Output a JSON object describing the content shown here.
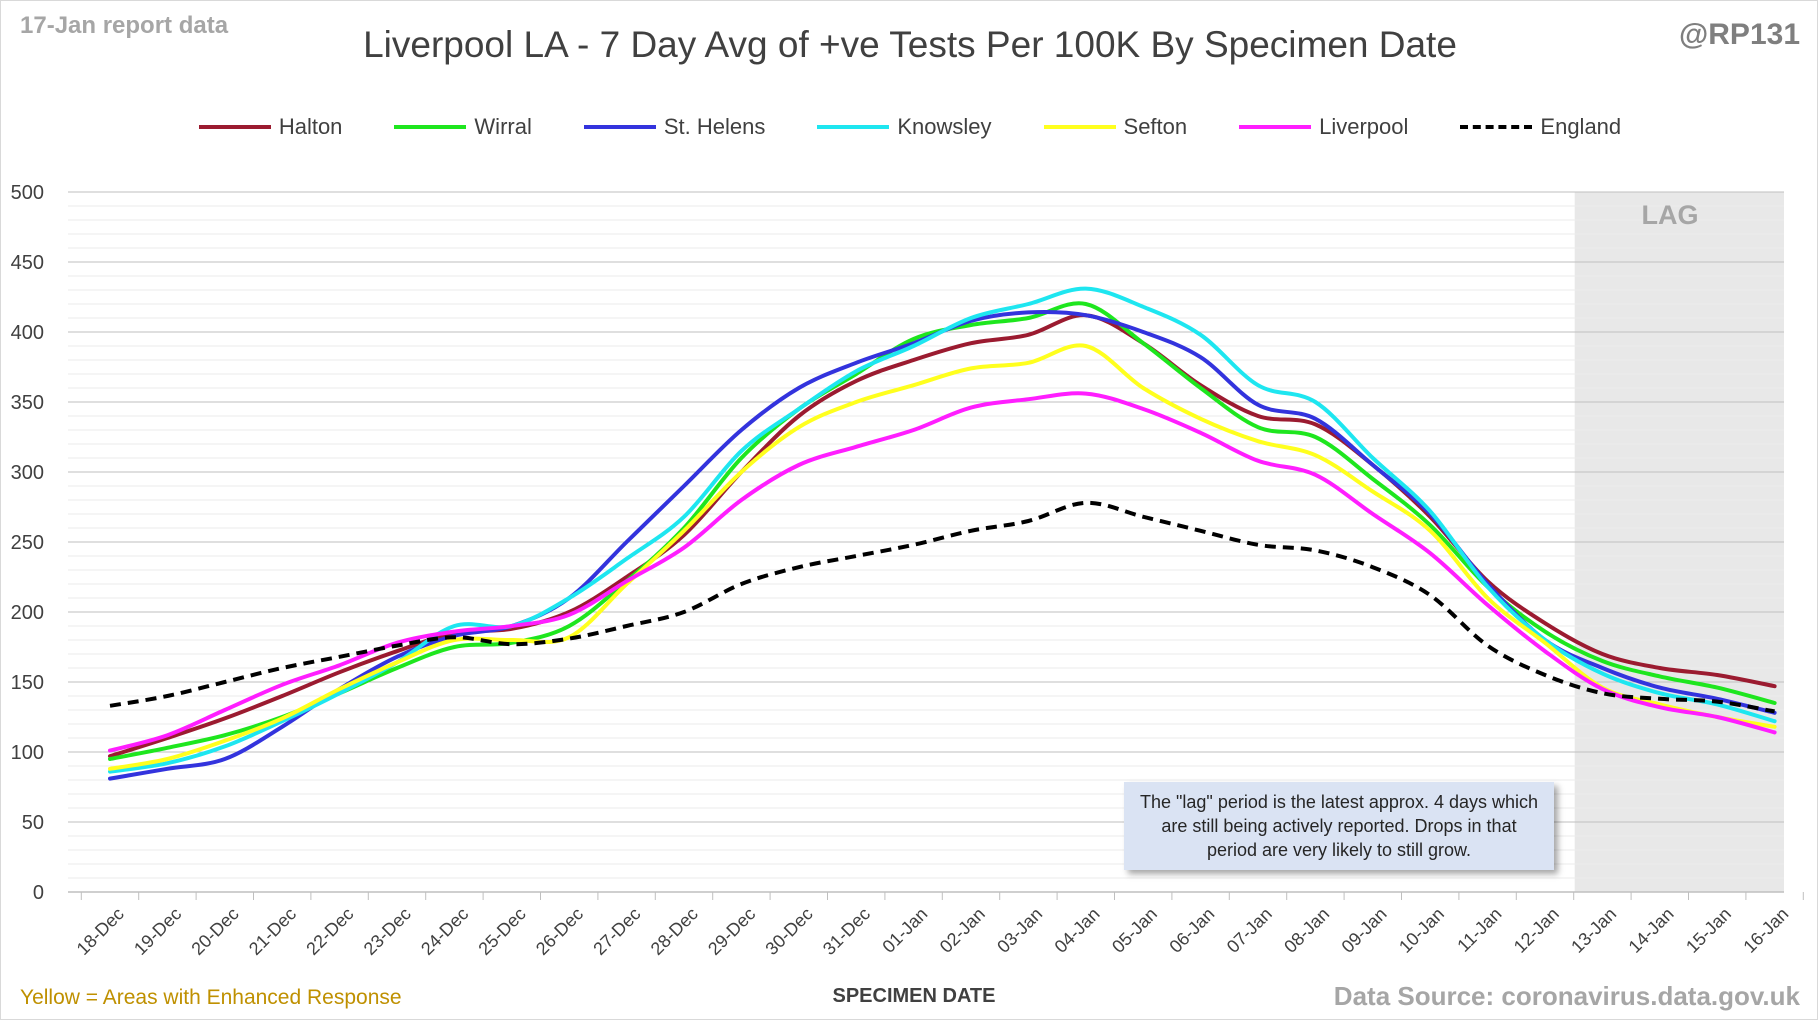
{
  "header": {
    "report_label": "17-Jan report data",
    "handle": "@RP131"
  },
  "footer": {
    "note": "Yellow = Areas with Enhanced Response",
    "source": "Data Source: coronavirus.data.gov.uk"
  },
  "lag": {
    "label": "LAG",
    "note": "The \"lag\" period is the latest approx. 4 days which are still being actively reported. Drops in that period are very likely to still grow.",
    "start": "13-Jan",
    "end": "16-Jan"
  },
  "colors": {
    "shading": "#e8e8e8",
    "grid": "#d9d9d9",
    "axis_text": "#404040",
    "note_box": "#dae3f3"
  },
  "chart_data": {
    "type": "line",
    "title": "Liverpool LA - 7 Day Avg of +ve Tests Per 100K By Specimen Date",
    "xlabel": "SPECIMEN DATE",
    "ylabel": "",
    "ylim": [
      0,
      500
    ],
    "yticks": [
      0,
      50,
      100,
      150,
      200,
      250,
      300,
      350,
      400,
      450,
      500
    ],
    "grid": true,
    "legend_position": "top",
    "categories": [
      "18-Dec",
      "19-Dec",
      "20-Dec",
      "21-Dec",
      "22-Dec",
      "23-Dec",
      "24-Dec",
      "25-Dec",
      "26-Dec",
      "27-Dec",
      "28-Dec",
      "29-Dec",
      "30-Dec",
      "31-Dec",
      "01-Jan",
      "02-Jan",
      "03-Jan",
      "04-Jan",
      "05-Jan",
      "06-Jan",
      "07-Jan",
      "08-Jan",
      "09-Jan",
      "10-Jan",
      "11-Jan",
      "12-Jan",
      "13-Jan",
      "14-Jan",
      "15-Jan",
      "16-Jan"
    ],
    "series": [
      {
        "name": "Halton",
        "color": "#9b1b30",
        "dashed": false,
        "values": [
          97,
          110,
          124,
          140,
          157,
          172,
          185,
          188,
          200,
          225,
          255,
          300,
          340,
          365,
          380,
          392,
          398,
          412,
          392,
          362,
          340,
          334,
          305,
          268,
          222,
          192,
          170,
          160,
          155,
          147
        ]
      },
      {
        "name": "Wirral",
        "color": "#1ee61e",
        "dashed": false,
        "values": [
          95,
          103,
          112,
          125,
          142,
          160,
          175,
          178,
          190,
          222,
          260,
          310,
          345,
          370,
          395,
          405,
          410,
          420,
          392,
          360,
          332,
          325,
          295,
          262,
          218,
          186,
          165,
          154,
          146,
          135
        ]
      },
      {
        "name": "St. Helens",
        "color": "#3333dd",
        "dashed": false,
        "values": [
          81,
          88,
          95,
          118,
          145,
          168,
          183,
          190,
          210,
          250,
          290,
          330,
          360,
          378,
          392,
          408,
          414,
          412,
          400,
          382,
          348,
          338,
          305,
          270,
          220,
          180,
          160,
          146,
          138,
          128
        ]
      },
      {
        "name": "Knowsley",
        "color": "#1ee6f0",
        "dashed": false,
        "values": [
          86,
          92,
          104,
          122,
          142,
          164,
          190,
          190,
          210,
          238,
          268,
          315,
          345,
          372,
          390,
          410,
          420,
          431,
          418,
          398,
          362,
          350,
          310,
          272,
          218,
          180,
          156,
          142,
          134,
          122
        ]
      },
      {
        "name": "Sefton",
        "color": "#ffff1e",
        "dashed": false,
        "values": [
          88,
          95,
          108,
          124,
          145,
          164,
          180,
          180,
          182,
          220,
          258,
          300,
          332,
          350,
          362,
          374,
          378,
          390,
          360,
          338,
          322,
          312,
          286,
          258,
          210,
          178,
          146,
          134,
          125,
          118
        ]
      },
      {
        "name": "Liverpool",
        "color": "#ff1eff",
        "dashed": false,
        "values": [
          101,
          112,
          130,
          148,
          162,
          178,
          186,
          190,
          198,
          222,
          246,
          280,
          305,
          318,
          330,
          346,
          352,
          356,
          345,
          328,
          308,
          298,
          270,
          242,
          205,
          172,
          145,
          132,
          125,
          114
        ]
      },
      {
        "name": "England",
        "color": "#000000",
        "dashed": true,
        "values": [
          133,
          140,
          150,
          160,
          168,
          176,
          182,
          177,
          181,
          190,
          200,
          220,
          232,
          240,
          248,
          258,
          265,
          278,
          268,
          258,
          248,
          244,
          232,
          212,
          176,
          155,
          142,
          138,
          136,
          129
        ]
      }
    ]
  }
}
